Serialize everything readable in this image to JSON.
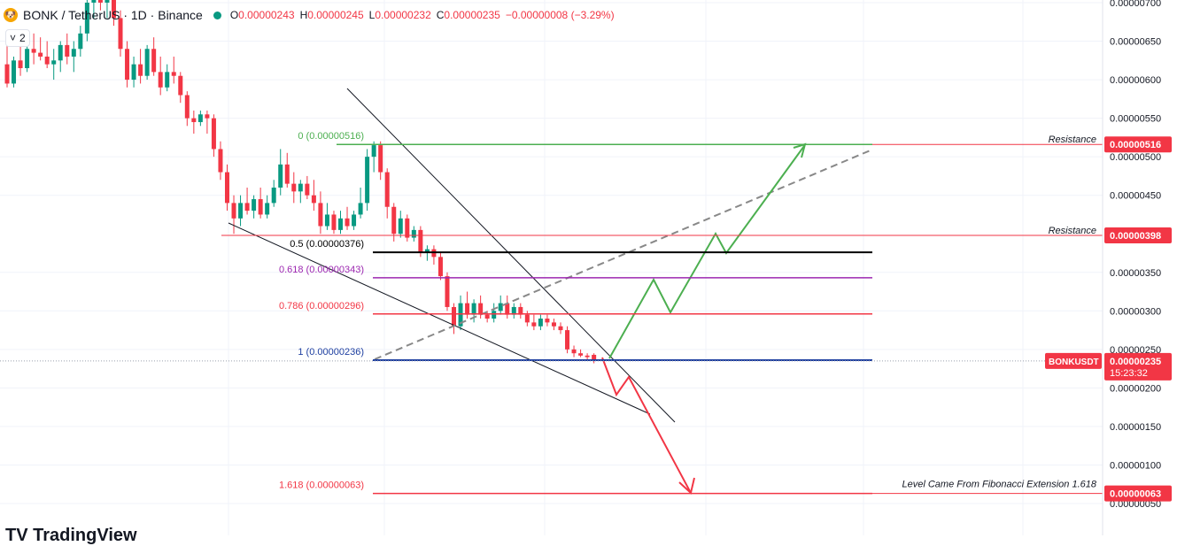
{
  "header": {
    "symbol": "BONK / TetherUS · 1D · Binance",
    "logo_icon": "bonk-dog-icon",
    "ohlc": [
      {
        "k": "O",
        "v": "0.00000243"
      },
      {
        "k": "H",
        "v": "0.00000245"
      },
      {
        "k": "L",
        "v": "0.00000232"
      },
      {
        "k": "C",
        "v": "0.00000235"
      }
    ],
    "change": "−0.00000008 (−3.29%)"
  },
  "indicator_badge": {
    "icon": "chevron-down-icon",
    "count": "2"
  },
  "watermark": "TV TradingView",
  "colors": {
    "up": "#089981",
    "down": "#f23645",
    "fib_green": "#4caf50",
    "fib_purple": "#9c27b0",
    "fib_blue": "#1e3fa0",
    "price_tag": "#f23645"
  },
  "chart_data": {
    "type": "candlestick",
    "symbol": "BONKUSDT",
    "interval": "1D",
    "exchange": "Binance",
    "y_axis": {
      "range": [
        5e-07,
        7e-06
      ],
      "ticks": [
        {
          "value": 7e-06,
          "label": "0.00000700"
        },
        {
          "value": 6.5e-06,
          "label": "0.00000650"
        },
        {
          "value": 6e-06,
          "label": "0.00000600"
        },
        {
          "value": 5.5e-06,
          "label": "0.00000550"
        },
        {
          "value": 5e-06,
          "label": "0.00000500"
        },
        {
          "value": 4.5e-06,
          "label": "0.00000450"
        },
        {
          "value": 3.5e-06,
          "label": "0.00000350"
        },
        {
          "value": 3e-06,
          "label": "0.00000300"
        },
        {
          "value": 2.5e-06,
          "label": "0.00000250"
        },
        {
          "value": 2e-06,
          "label": "0.00000200"
        },
        {
          "value": 1.5e-06,
          "label": "0.00000150"
        },
        {
          "value": 1e-06,
          "label": "0.00000100"
        },
        {
          "value": 5e-07,
          "label": "0.00000050"
        }
      ]
    },
    "current_price": {
      "symbol_label": "BONKUSDT",
      "value": 2.35e-06,
      "label": "0.00000235",
      "countdown": "15:23:32"
    },
    "fibonacci_levels": [
      {
        "ratio": "0",
        "value": 5.16e-06,
        "label": "0 (0.00000516)",
        "color": "#4caf50"
      },
      {
        "ratio": "0.5",
        "value": 3.76e-06,
        "label": "0.5 (0.00000376)",
        "color": "#000000"
      },
      {
        "ratio": "0.618",
        "value": 3.43e-06,
        "label": "0.618 (0.00000343)",
        "color": "#9c27b0"
      },
      {
        "ratio": "0.786",
        "value": 2.96e-06,
        "label": "0.786 (0.00000296)",
        "color": "#f23645"
      },
      {
        "ratio": "1",
        "value": 2.36e-06,
        "label": "1 (0.00000236)",
        "color": "#1e3fa0"
      },
      {
        "ratio": "1.618",
        "value": 6.3e-07,
        "label": "1.618 (0.00000063)",
        "color": "#f23645"
      }
    ],
    "horizontal_lines": [
      {
        "value": 5.16e-06,
        "text": "Resistance",
        "price_label": "0.00000516"
      },
      {
        "value": 3.98e-06,
        "text": "Resistance",
        "price_label": "0.00000398"
      },
      {
        "value": 6.3e-07,
        "text": "Level Came From Fibonacci Extension 1.618",
        "price_label": "0.00000063"
      }
    ],
    "candles": [
      {
        "o": 6.2,
        "h": 6.5,
        "l": 5.9,
        "c": 5.95
      },
      {
        "o": 5.95,
        "h": 6.3,
        "l": 5.9,
        "c": 6.25
      },
      {
        "o": 6.25,
        "h": 6.45,
        "l": 6.05,
        "c": 6.15
      },
      {
        "o": 6.15,
        "h": 6.5,
        "l": 6.1,
        "c": 6.4
      },
      {
        "o": 6.4,
        "h": 6.6,
        "l": 6.2,
        "c": 6.35
      },
      {
        "o": 6.35,
        "h": 6.55,
        "l": 6.25,
        "c": 6.3
      },
      {
        "o": 6.3,
        "h": 6.5,
        "l": 6.15,
        "c": 6.2
      },
      {
        "o": 6.2,
        "h": 6.4,
        "l": 6.0,
        "c": 6.25
      },
      {
        "o": 6.25,
        "h": 6.5,
        "l": 6.1,
        "c": 6.45
      },
      {
        "o": 6.45,
        "h": 6.6,
        "l": 6.2,
        "c": 6.3
      },
      {
        "o": 6.3,
        "h": 6.5,
        "l": 6.1,
        "c": 6.4
      },
      {
        "o": 6.4,
        "h": 6.7,
        "l": 6.3,
        "c": 6.6
      },
      {
        "o": 6.6,
        "h": 7.2,
        "l": 6.5,
        "c": 7.0
      },
      {
        "o": 7.0,
        "h": 7.4,
        "l": 6.8,
        "c": 7.2
      },
      {
        "o": 7.2,
        "h": 7.4,
        "l": 6.9,
        "c": 7.0
      },
      {
        "o": 7.0,
        "h": 7.3,
        "l": 6.8,
        "c": 7.1
      },
      {
        "o": 7.1,
        "h": 7.2,
        "l": 6.7,
        "c": 6.8
      },
      {
        "o": 6.8,
        "h": 6.9,
        "l": 6.3,
        "c": 6.4
      },
      {
        "o": 6.4,
        "h": 6.5,
        "l": 5.9,
        "c": 6.0
      },
      {
        "o": 6.0,
        "h": 6.3,
        "l": 5.9,
        "c": 6.2
      },
      {
        "o": 6.2,
        "h": 6.4,
        "l": 5.95,
        "c": 6.05
      },
      {
        "o": 6.05,
        "h": 6.45,
        "l": 6.0,
        "c": 6.4
      },
      {
        "o": 6.4,
        "h": 6.55,
        "l": 6.05,
        "c": 6.1
      },
      {
        "o": 6.1,
        "h": 6.3,
        "l": 5.8,
        "c": 5.9
      },
      {
        "o": 5.9,
        "h": 6.2,
        "l": 5.85,
        "c": 6.1
      },
      {
        "o": 6.1,
        "h": 6.3,
        "l": 5.95,
        "c": 6.05
      },
      {
        "o": 6.05,
        "h": 6.1,
        "l": 5.7,
        "c": 5.8
      },
      {
        "o": 5.8,
        "h": 5.85,
        "l": 5.4,
        "c": 5.5
      },
      {
        "o": 5.5,
        "h": 5.6,
        "l": 5.3,
        "c": 5.45
      },
      {
        "o": 5.45,
        "h": 5.6,
        "l": 5.4,
        "c": 5.55
      },
      {
        "o": 5.55,
        "h": 5.6,
        "l": 5.3,
        "c": 5.5
      },
      {
        "o": 5.5,
        "h": 5.55,
        "l": 5.0,
        "c": 5.1
      },
      {
        "o": 5.1,
        "h": 5.2,
        "l": 4.7,
        "c": 4.8
      },
      {
        "o": 4.8,
        "h": 4.9,
        "l": 4.3,
        "c": 4.4
      },
      {
        "o": 4.4,
        "h": 4.5,
        "l": 4.0,
        "c": 4.2
      },
      {
        "o": 4.2,
        "h": 4.5,
        "l": 4.1,
        "c": 4.4
      },
      {
        "o": 4.4,
        "h": 4.6,
        "l": 4.25,
        "c": 4.3
      },
      {
        "o": 4.3,
        "h": 4.5,
        "l": 4.2,
        "c": 4.45
      },
      {
        "o": 4.45,
        "h": 4.6,
        "l": 4.2,
        "c": 4.25
      },
      {
        "o": 4.25,
        "h": 4.5,
        "l": 4.2,
        "c": 4.4
      },
      {
        "o": 4.4,
        "h": 4.7,
        "l": 4.35,
        "c": 4.6
      },
      {
        "o": 4.6,
        "h": 5.1,
        "l": 4.5,
        "c": 4.9
      },
      {
        "o": 4.9,
        "h": 5.05,
        "l": 4.6,
        "c": 4.65
      },
      {
        "o": 4.65,
        "h": 4.8,
        "l": 4.4,
        "c": 4.55
      },
      {
        "o": 4.55,
        "h": 4.7,
        "l": 4.4,
        "c": 4.65
      },
      {
        "o": 4.65,
        "h": 4.75,
        "l": 4.45,
        "c": 4.5
      },
      {
        "o": 4.5,
        "h": 4.7,
        "l": 4.3,
        "c": 4.4
      },
      {
        "o": 4.4,
        "h": 4.55,
        "l": 4.0,
        "c": 4.1
      },
      {
        "o": 4.1,
        "h": 4.4,
        "l": 4.05,
        "c": 4.25
      },
      {
        "o": 4.25,
        "h": 4.3,
        "l": 4.0,
        "c": 4.05
      },
      {
        "o": 4.05,
        "h": 4.3,
        "l": 4.0,
        "c": 4.2
      },
      {
        "o": 4.2,
        "h": 4.35,
        "l": 4.05,
        "c": 4.1
      },
      {
        "o": 4.1,
        "h": 4.3,
        "l": 4.05,
        "c": 4.25
      },
      {
        "o": 4.25,
        "h": 4.6,
        "l": 4.2,
        "c": 4.4
      },
      {
        "o": 4.4,
        "h": 5.1,
        "l": 4.3,
        "c": 5.0
      },
      {
        "o": 5.0,
        "h": 5.2,
        "l": 4.8,
        "c": 5.15
      },
      {
        "o": 5.15,
        "h": 5.2,
        "l": 4.7,
        "c": 4.8
      },
      {
        "o": 4.8,
        "h": 4.85,
        "l": 4.2,
        "c": 4.35
      },
      {
        "o": 4.35,
        "h": 4.4,
        "l": 3.9,
        "c": 4.0
      },
      {
        "o": 4.0,
        "h": 4.3,
        "l": 3.95,
        "c": 4.2
      },
      {
        "o": 4.2,
        "h": 4.25,
        "l": 3.9,
        "c": 3.95
      },
      {
        "o": 3.95,
        "h": 4.1,
        "l": 3.9,
        "c": 4.05
      },
      {
        "o": 4.05,
        "h": 4.1,
        "l": 3.7,
        "c": 3.75
      },
      {
        "o": 3.75,
        "h": 3.85,
        "l": 3.65,
        "c": 3.8
      },
      {
        "o": 3.8,
        "h": 3.85,
        "l": 3.6,
        "c": 3.7
      },
      {
        "o": 3.7,
        "h": 3.75,
        "l": 3.4,
        "c": 3.45
      },
      {
        "o": 3.45,
        "h": 3.5,
        "l": 3.0,
        "c": 3.05
      },
      {
        "o": 3.05,
        "h": 3.1,
        "l": 2.7,
        "c": 2.8
      },
      {
        "o": 2.8,
        "h": 3.2,
        "l": 2.75,
        "c": 3.1
      },
      {
        "o": 3.1,
        "h": 3.25,
        "l": 2.9,
        "c": 2.95
      },
      {
        "o": 2.95,
        "h": 3.15,
        "l": 2.85,
        "c": 3.1
      },
      {
        "o": 3.1,
        "h": 3.2,
        "l": 2.9,
        "c": 2.95
      },
      {
        "o": 2.95,
        "h": 3.0,
        "l": 2.85,
        "c": 2.9
      },
      {
        "o": 2.9,
        "h": 3.1,
        "l": 2.85,
        "c": 3.0
      },
      {
        "o": 3.0,
        "h": 3.2,
        "l": 2.95,
        "c": 3.1
      },
      {
        "o": 3.1,
        "h": 3.2,
        "l": 2.9,
        "c": 2.95
      },
      {
        "o": 2.95,
        "h": 3.1,
        "l": 2.9,
        "c": 3.05
      },
      {
        "o": 3.05,
        "h": 3.1,
        "l": 2.9,
        "c": 2.95
      },
      {
        "o": 2.95,
        "h": 3.0,
        "l": 2.8,
        "c": 2.85
      },
      {
        "o": 2.85,
        "h": 2.95,
        "l": 2.75,
        "c": 2.8
      },
      {
        "o": 2.8,
        "h": 2.95,
        "l": 2.75,
        "c": 2.9
      },
      {
        "o": 2.9,
        "h": 2.95,
        "l": 2.8,
        "c": 2.85
      },
      {
        "o": 2.85,
        "h": 2.9,
        "l": 2.75,
        "c": 2.8
      },
      {
        "o": 2.8,
        "h": 2.85,
        "l": 2.7,
        "c": 2.75
      },
      {
        "o": 2.75,
        "h": 2.8,
        "l": 2.45,
        "c": 2.5
      },
      {
        "o": 2.5,
        "h": 2.55,
        "l": 2.4,
        "c": 2.45
      },
      {
        "o": 2.45,
        "h": 2.5,
        "l": 2.4,
        "c": 2.42
      },
      {
        "o": 2.42,
        "h": 2.45,
        "l": 2.35,
        "c": 2.4
      },
      {
        "o": 2.43,
        "h": 2.45,
        "l": 2.32,
        "c": 2.35
      }
    ],
    "scale_note": "candle values in units of 1e-6 USDT"
  }
}
